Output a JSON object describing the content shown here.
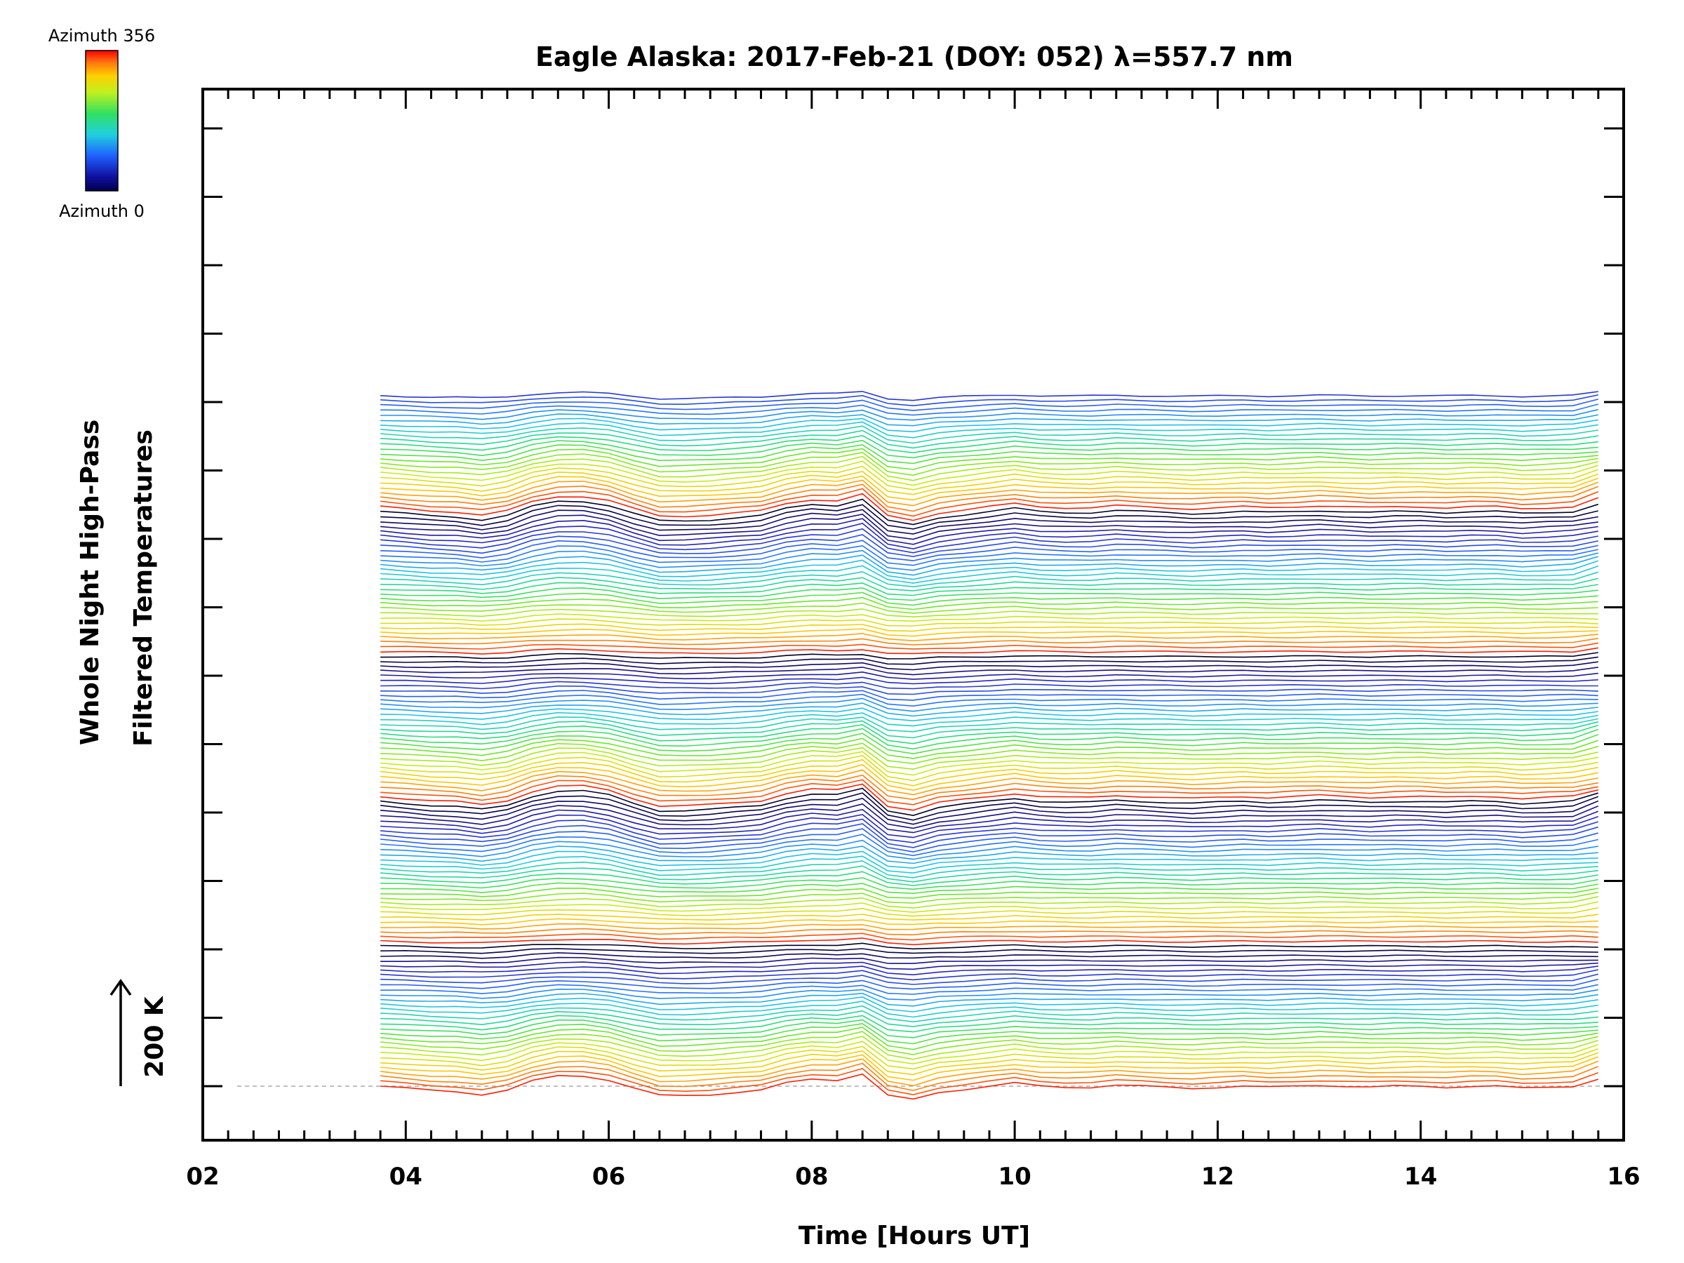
{
  "chart_data": {
    "type": "line",
    "title": "Eagle Alaska: 2017-Feb-21 (DOY: 052) λ=557.7 nm",
    "xlabel": "Time [Hours UT]",
    "ylabel": [
      "Whole Night High-Pass",
      "Filtered Temperatures"
    ],
    "scale_bar_label": "200 K",
    "xlim": [
      2,
      16
    ],
    "x_ticks": [
      "02",
      "04",
      "06",
      "08",
      "10",
      "12",
      "14",
      "16"
    ],
    "colorbar": {
      "min_label": "Azimuth 0",
      "max_label": "Azimuth 356",
      "colormap": "rainbow"
    },
    "series_count": 144,
    "azimuth_range_deg": [
      0,
      356
    ],
    "x": [
      3.75,
      4.0,
      4.25,
      4.5,
      4.75,
      5.0,
      5.25,
      5.5,
      5.75,
      6.0,
      6.25,
      6.5,
      6.75,
      7.0,
      7.25,
      7.5,
      7.75,
      8.0,
      8.25,
      8.5,
      8.75,
      9.0,
      9.25,
      9.5,
      9.75,
      10.0,
      10.25,
      10.5,
      10.75,
      11.0,
      11.25,
      11.5,
      11.75,
      12.0,
      12.25,
      12.5,
      12.75,
      13.0,
      13.25,
      13.5,
      13.75,
      14.0,
      14.25,
      14.5,
      14.75,
      15.0,
      15.25,
      15.5,
      15.75
    ],
    "base_profile": [
      0,
      -4,
      -8,
      -10,
      -16,
      -8,
      10,
      20,
      20,
      12,
      -4,
      -18,
      -18,
      -16,
      -12,
      -8,
      6,
      14,
      12,
      24,
      -18,
      -26,
      -12,
      -6,
      0,
      6,
      0,
      -2,
      -2,
      2,
      0,
      -2,
      -4,
      -2,
      0,
      -2,
      0,
      2,
      0,
      -2,
      0,
      0,
      -2,
      0,
      0,
      -4,
      -2,
      0,
      14
    ],
    "series_offset_K": 9.3,
    "rows_per_group": 30
  },
  "colors": {
    "axis": "#000000",
    "baseline": "#aaaaaa"
  }
}
